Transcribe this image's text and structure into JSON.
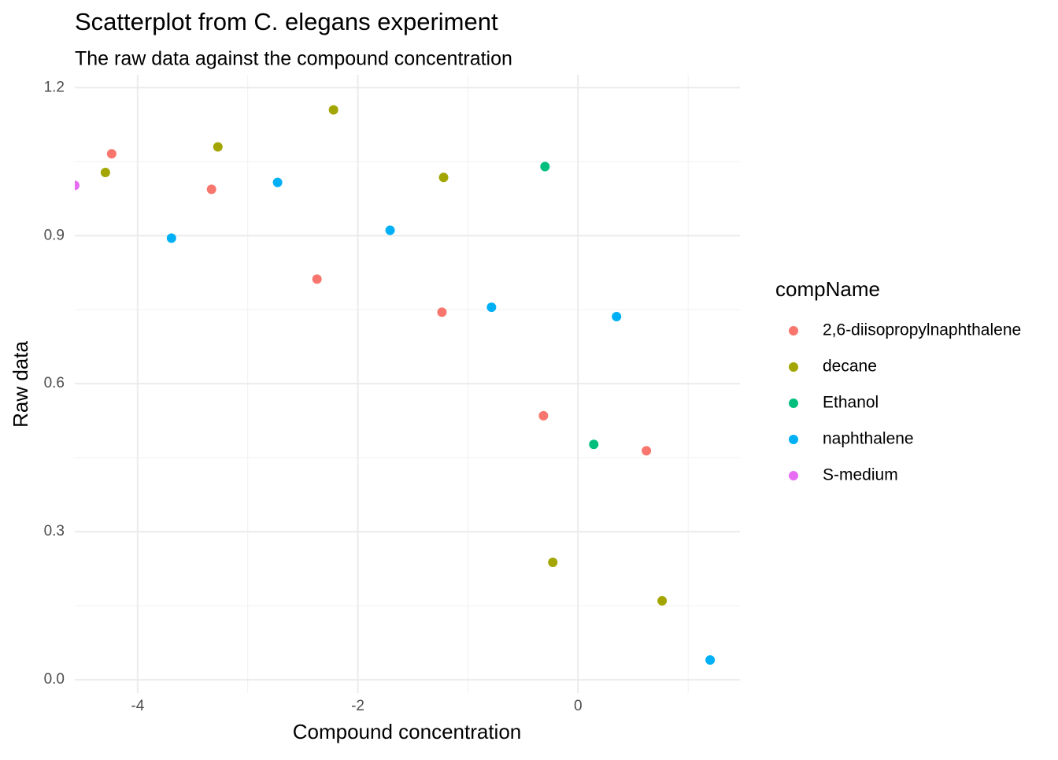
{
  "chart_data": {
    "type": "scatter",
    "title": "Scatterplot from C. elegans experiment",
    "subtitle": "The raw data against the compound concentration",
    "x_label": "Compound concentration",
    "y_label": "Raw data",
    "legend_title": "compName",
    "legend_position": "right",
    "grid": true,
    "xlim": [
      -4.571,
      1.471
    ],
    "ylim": [
      -0.027,
      1.226
    ],
    "xticks": [
      -4,
      -2,
      0
    ],
    "yticks": [
      {
        "value": 0,
        "label": "0.0"
      },
      0.3,
      0.6,
      0.9,
      {
        "value": 1.2,
        "label": "1.2"
      }
    ],
    "x_minor_ticks": [
      -3,
      -1,
      1
    ],
    "y_minor_ticks": [
      0.15,
      0.45,
      0.75,
      1.05
    ],
    "series": [
      {
        "name": "2,6-diisopropylnaphthalene",
        "color": "#F8766D",
        "x": [
          -4.236,
          -3.329,
          -2.371,
          -1.236,
          -0.314,
          0.621
        ],
        "values": [
          1.066,
          0.994,
          0.812,
          0.745,
          0.535,
          0.464
        ]
      },
      {
        "name": "decane",
        "color": "#A3A500",
        "x": [
          -4.293,
          -3.271,
          -2.221,
          -1.221,
          -0.229,
          0.764
        ],
        "values": [
          1.028,
          1.08,
          1.155,
          1.018,
          0.238,
          0.16
        ]
      },
      {
        "name": "Ethanol",
        "color": "#00BF7D",
        "x": [
          -0.3,
          0.143
        ],
        "values": [
          1.04,
          0.477
        ]
      },
      {
        "name": "naphthalene",
        "color": "#00B0F6",
        "x": [
          -3.693,
          -2.729,
          -1.707,
          -0.786,
          0.35,
          1.2
        ],
        "values": [
          0.895,
          1.008,
          0.911,
          0.755,
          0.736,
          0.04
        ]
      },
      {
        "name": "S-medium",
        "color": "#E76BF3",
        "x": [
          -4.571
        ],
        "values": [
          1.002
        ]
      }
    ]
  }
}
